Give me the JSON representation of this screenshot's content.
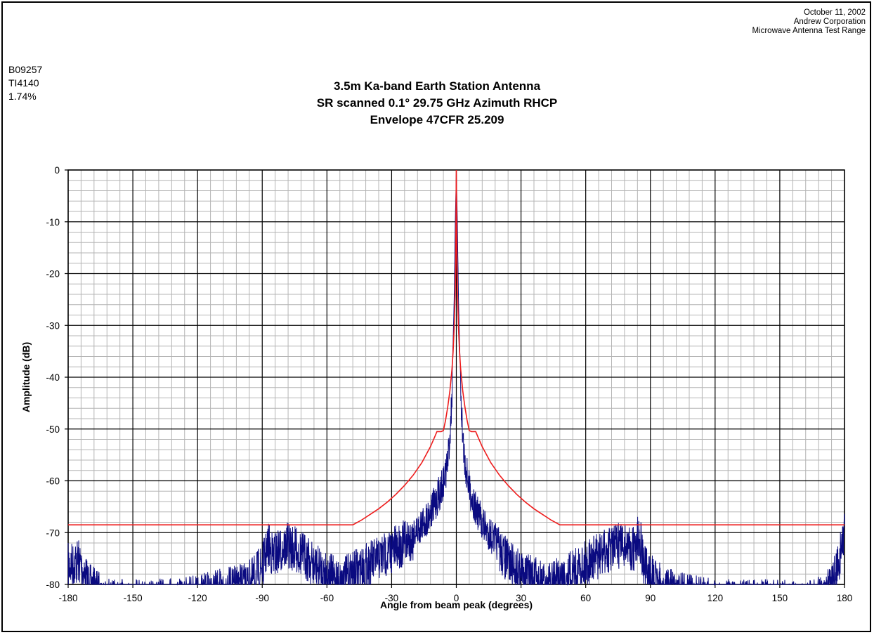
{
  "header": {
    "date": "October 11, 2002",
    "company": "Andrew Corporation",
    "facility": "Microwave Antenna Test Range",
    "code1": "B09257",
    "code2": "TI4140",
    "code3": "1.74%"
  },
  "colors": {
    "measured": "#0a0a80",
    "envelope": "#ee1c1c",
    "grid_major": "#000000",
    "grid_minor": "#b4b4b4"
  },
  "chart_data": {
    "type": "line",
    "title_lines": [
      "3.5m Ka-band Earth Station Antenna",
      "SR scanned 0.1° 29.75 GHz Azimuth RHCP",
      "Envelope 47CFR 25.209"
    ],
    "xlabel": "Angle from beam peak (degrees)",
    "ylabel": "Amplitude (dB)",
    "xlim": [
      -180,
      180
    ],
    "ylim": [
      -80,
      0
    ],
    "x_ticks": [
      -180,
      -150,
      -120,
      -90,
      -60,
      -30,
      0,
      30,
      60,
      90,
      120,
      150,
      180
    ],
    "y_ticks": [
      0,
      -10,
      -20,
      -30,
      -40,
      -50,
      -60,
      -70,
      -80
    ],
    "x_minor_step": 6,
    "y_minor_step": 2,
    "grid": true,
    "legend": "none",
    "series": [
      {
        "role": "envelope",
        "x": [
          -180,
          -48,
          -44,
          -40,
          -36,
          -32,
          -28,
          -24,
          -20,
          -16,
          -12,
          -10,
          -9,
          -7,
          -6,
          -5,
          -4,
          -3,
          -2,
          -1.5,
          -1,
          -0.5,
          -0.3,
          0,
          0.3,
          0.5,
          1,
          1.5,
          2,
          3,
          4,
          5,
          6,
          7,
          9,
          10,
          12,
          16,
          20,
          24,
          28,
          32,
          36,
          40,
          44,
          48,
          180
        ],
        "y": [
          -68.5,
          -68.5,
          -67.6,
          -66.5,
          -65.4,
          -64.1,
          -62.6,
          -60.9,
          -58.9,
          -56.5,
          -53.4,
          -51.5,
          -50.5,
          -50.5,
          -50.3,
          -48.3,
          -45.8,
          -42.7,
          -38.3,
          -35.1,
          -30.6,
          -23.1,
          -17.5,
          0,
          -17.5,
          -23.1,
          -30.6,
          -35.1,
          -38.3,
          -42.7,
          -45.8,
          -48.3,
          -50.3,
          -50.5,
          -50.5,
          -51.5,
          -53.4,
          -56.5,
          -58.9,
          -60.9,
          -62.6,
          -64.1,
          -65.4,
          -66.5,
          -67.6,
          -68.5,
          -68.5
        ]
      },
      {
        "role": "measured",
        "x": [
          -180,
          -175,
          -170,
          -160,
          -150,
          -140,
          -130,
          -120,
          -110,
          -100,
          -95,
          -90,
          -87,
          -85,
          -82,
          -78,
          -74,
          -70,
          -66,
          -62,
          -58,
          -54,
          -50,
          -46,
          -42,
          -38,
          -34,
          -30,
          -26,
          -22,
          -18,
          -14,
          -10,
          -8,
          -6,
          -4,
          -3,
          -2,
          -1.5,
          -1,
          -0.5,
          0,
          0.5,
          1,
          1.5,
          2,
          3,
          4,
          6,
          8,
          10,
          14,
          18,
          22,
          26,
          30,
          34,
          38,
          42,
          46,
          50,
          54,
          58,
          62,
          66,
          70,
          74,
          78,
          82,
          85,
          87,
          90,
          95,
          100,
          110,
          120,
          130,
          140,
          150,
          160,
          165,
          170,
          174,
          177,
          180
        ],
        "y": [
          -72,
          -71,
          -76,
          -79,
          -79,
          -79,
          -78.5,
          -78,
          -77,
          -76,
          -75,
          -72,
          -68,
          -70,
          -69,
          -68,
          -69,
          -70,
          -72,
          -73,
          -74,
          -75,
          -74,
          -73,
          -72,
          -71,
          -70,
          -69,
          -68,
          -67,
          -66,
          -64,
          -61,
          -59,
          -57,
          -53,
          -48,
          -40,
          -33,
          -25,
          -10,
          0,
          -10,
          -25,
          -33,
          -40,
          -48,
          -53,
          -58,
          -61,
          -63,
          -66,
          -68,
          -70,
          -72,
          -73,
          -74,
          -75,
          -76,
          -75,
          -74,
          -73,
          -72,
          -71,
          -70,
          -69,
          -68,
          -68,
          -69,
          -66,
          -72,
          -74,
          -76,
          -77,
          -78,
          -79,
          -79,
          -79,
          -79,
          -79.5,
          -79,
          -78,
          -76,
          -72,
          -65
        ]
      }
    ]
  }
}
